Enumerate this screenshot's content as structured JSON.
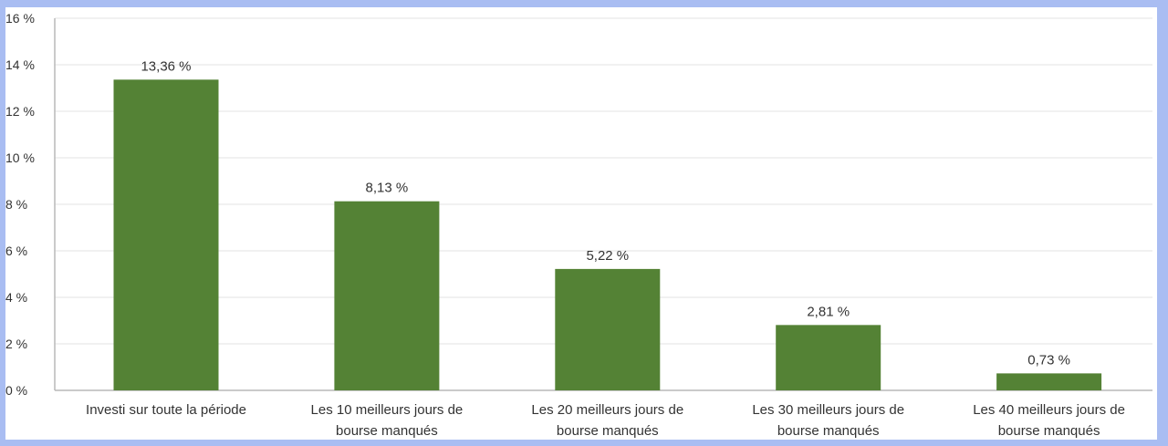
{
  "chart_data": {
    "type": "bar",
    "categories": [
      [
        "Investi sur toute la période"
      ],
      [
        "Les 10 meilleurs jours de",
        "bourse manqués"
      ],
      [
        "Les 20 meilleurs jours de",
        "bourse manqués"
      ],
      [
        "Les 30 meilleurs jours de",
        "bourse manqués"
      ],
      [
        "Les 40 meilleurs jours de",
        "bourse manqués"
      ]
    ],
    "values": [
      13.36,
      8.13,
      5.22,
      2.81,
      0.73
    ],
    "data_labels": [
      "13,36 %",
      "8,13 %",
      "5,22 %",
      "2,81 %",
      "0,73 %"
    ],
    "y_ticks": [
      "0 %",
      "2 %",
      "4 %",
      "6 %",
      "8 %",
      "10 %",
      "12 %",
      "14 %",
      "16 %"
    ],
    "ylim": [
      0,
      16
    ],
    "grid": true,
    "bar_color": "#548235",
    "title": "",
    "xlabel": "",
    "ylabel": ""
  }
}
